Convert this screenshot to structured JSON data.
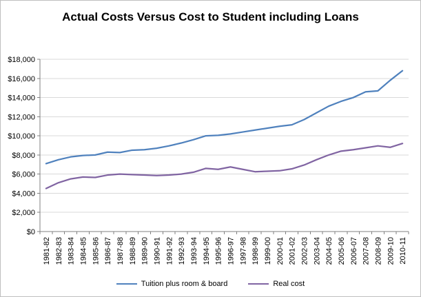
{
  "frame": {
    "background": "#ffffff",
    "border_color": "#bfbfbf"
  },
  "chart_data": {
    "type": "line",
    "title": "Actual Costs Versus Cost to Student including Loans",
    "categories": [
      "1981-82",
      "1982-83",
      "1983-84",
      "1984-85",
      "1985-86",
      "1986-87",
      "1987-88",
      "1988-89",
      "1989-90",
      "1990-91",
      "1991-92",
      "1992-93",
      "1993-94",
      "1994-95",
      "1995-96",
      "1996-97",
      "1997-98",
      "1998-99",
      "1999-00",
      "2000-01",
      "2001-02",
      "2002-03",
      "2003-04",
      "2004-05",
      "2005-06",
      "2006-07",
      "2007-08",
      "2008-09",
      "2009-10",
      "2010-11"
    ],
    "series": [
      {
        "name": "Tuition plus room & board",
        "color": "#4F81BD",
        "values": [
          7100,
          7500,
          7800,
          7950,
          8000,
          8300,
          8250,
          8500,
          8550,
          8700,
          8950,
          9250,
          9600,
          10000,
          10050,
          10200,
          10400,
          10600,
          10800,
          11000,
          11150,
          11700,
          12400,
          13100,
          13600,
          14000,
          14600,
          14700,
          15800,
          16800
        ]
      },
      {
        "name": "Real cost",
        "color": "#8064A2",
        "values": [
          4500,
          5100,
          5500,
          5700,
          5650,
          5900,
          6000,
          5950,
          5900,
          5850,
          5900,
          6000,
          6200,
          6600,
          6500,
          6750,
          6500,
          6250,
          6300,
          6350,
          6550,
          6950,
          7500,
          8000,
          8400,
          8550,
          8750,
          8950,
          8800,
          9200
        ]
      }
    ],
    "ylim": [
      0,
      18000
    ],
    "ytick_step": 2000,
    "ytick_labels": [
      "$0",
      "$2,000",
      "$4,000",
      "$6,000",
      "$8,000",
      "$10,000",
      "$12,000",
      "$14,000",
      "$16,000",
      "$18,000"
    ],
    "grid": true,
    "gridline_color": "#d9d9d9",
    "axis_color": "#808080",
    "text_color": "#000000",
    "legend_position": "bottom"
  }
}
